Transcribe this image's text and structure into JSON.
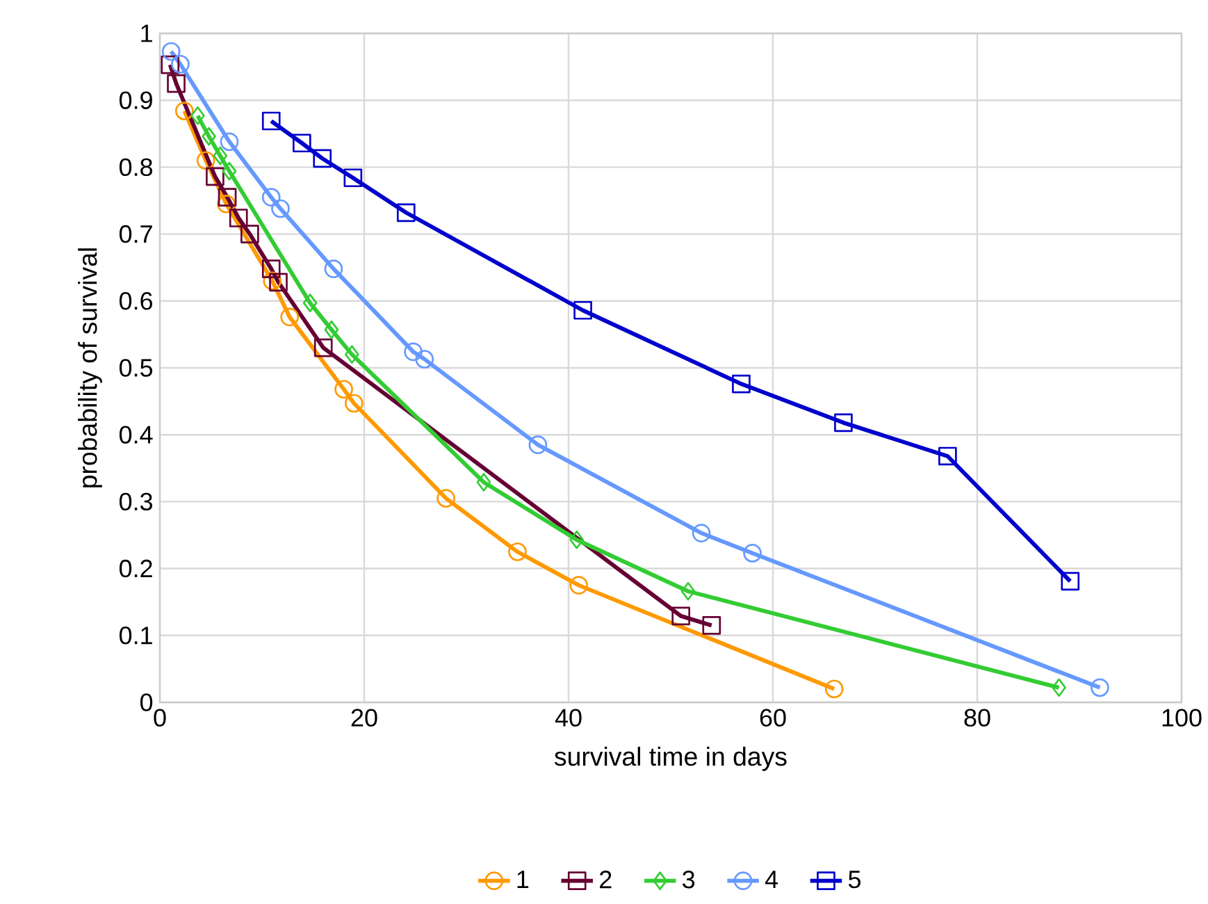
{
  "chart_data": {
    "type": "line",
    "xlabel": "survival time in days",
    "ylabel": "probability of survival",
    "xlim": [
      0,
      100
    ],
    "ylim": [
      0,
      1
    ],
    "xticks": [
      0,
      20,
      40,
      60,
      80,
      100
    ],
    "yticks": [
      0,
      0.1,
      0.2,
      0.3,
      0.4,
      0.5,
      0.6,
      0.7,
      0.8,
      0.9,
      1
    ],
    "grid": true,
    "legend": "bottom",
    "line_style": "solid",
    "series": [
      {
        "name": "1",
        "color": "#ff9900",
        "marker": "circle",
        "x": [
          2.4,
          4.5,
          6.5,
          11,
          12.7,
          18,
          19,
          28,
          35,
          41,
          66
        ],
        "values": [
          0.884,
          0.81,
          0.745,
          0.63,
          0.576,
          0.468,
          0.447,
          0.305,
          0.225,
          0.175,
          0.02
        ]
      },
      {
        "name": "2",
        "color": "#660033",
        "marker": "square",
        "x": [
          1,
          1.6,
          5.4,
          6.6,
          7.7,
          8.8,
          10.9,
          11.6,
          16,
          51,
          54
        ],
        "values": [
          0.953,
          0.925,
          0.786,
          0.755,
          0.724,
          0.7,
          0.648,
          0.628,
          0.53,
          0.129,
          0.115
        ]
      },
      {
        "name": "3",
        "color": "#33cc33",
        "marker": "diamond",
        "x": [
          3.7,
          4.8,
          5.9,
          6.8,
          14.7,
          16.8,
          18.8,
          31.7,
          40.8,
          51.7,
          88
        ],
        "values": [
          0.877,
          0.846,
          0.817,
          0.794,
          0.597,
          0.557,
          0.52,
          0.329,
          0.243,
          0.166,
          0.022
        ]
      },
      {
        "name": "4",
        "color": "#6699ff",
        "marker": "circle",
        "x": [
          1.1,
          2,
          6.8,
          10.9,
          11.8,
          17,
          24.8,
          25.9,
          37,
          53,
          58,
          92
        ],
        "values": [
          0.973,
          0.954,
          0.838,
          0.755,
          0.738,
          0.648,
          0.524,
          0.513,
          0.385,
          0.253,
          0.223,
          0.022
        ]
      },
      {
        "name": "5",
        "color": "#0000cc",
        "marker": "square",
        "x": [
          10.9,
          13.9,
          15.9,
          18.9,
          24.1,
          41.4,
          56.9,
          66.9,
          77.1,
          89.1
        ],
        "values": [
          0.869,
          0.836,
          0.813,
          0.784,
          0.732,
          0.586,
          0.476,
          0.418,
          0.368,
          0.181
        ]
      }
    ]
  }
}
